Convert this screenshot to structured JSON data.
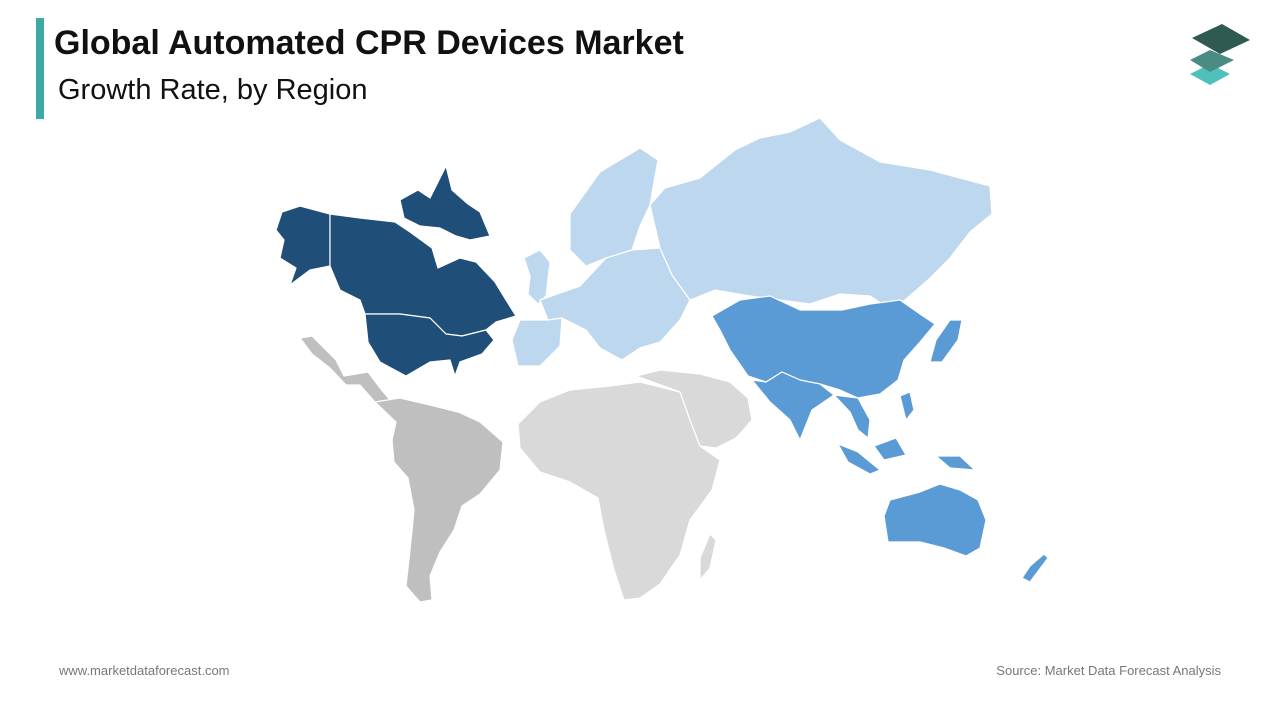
{
  "header": {
    "title": "Global Automated CPR Devices Market",
    "subtitle": "Growth Rate, by Region"
  },
  "logo": {
    "icon": "stacked-layers-icon"
  },
  "footer": {
    "website": "www.marketdataforecast.com",
    "source": "Source: Market Data Forecast Analysis"
  },
  "colors": {
    "accent": "#3DAAA5",
    "north_america": "#1F4E79",
    "europe": "#BDD7EE",
    "asia_pacific": "#5B9BD5",
    "latin_america": "#BFBFBF",
    "middle_east_africa": "#D9D9D9",
    "logo_dark": "#2E5A52",
    "logo_mid": "#4A8C84",
    "logo_light": "#4FC0BA"
  }
}
